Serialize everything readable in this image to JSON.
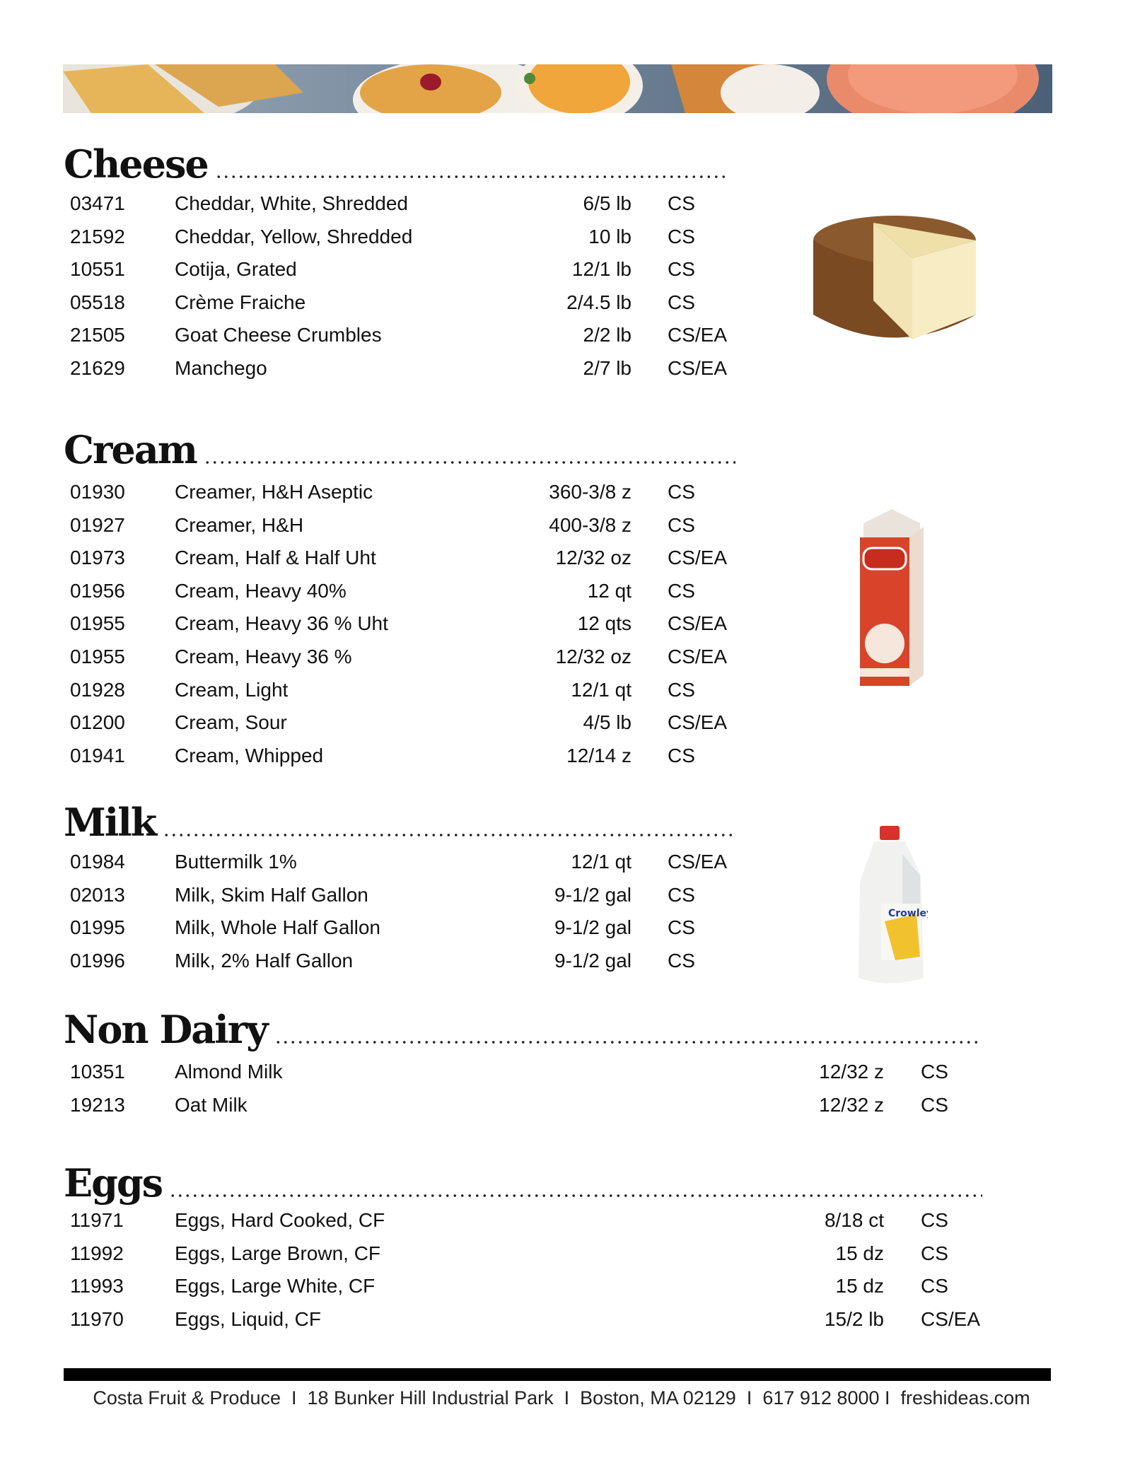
{
  "sections": [
    {
      "title": "Cheese",
      "rows": [
        [
          "03471",
          "Cheddar, White, Shredded",
          "6/5 lb",
          "CS"
        ],
        [
          "21592",
          "Cheddar, Yellow, Shredded",
          "10 lb",
          "CS"
        ],
        [
          "10551",
          "Cotija, Grated",
          "12/1 lb",
          "CS"
        ],
        [
          "05518",
          "Crème Fraiche",
          "2/4.5 lb",
          "CS"
        ],
        [
          "21505",
          "Goat Cheese Crumbles",
          "2/2 lb",
          "CS/EA"
        ],
        [
          "21629",
          "Manchego",
          "2/7 lb",
          "CS/EA"
        ]
      ]
    },
    {
      "title": "Cream",
      "rows": [
        [
          "01930",
          "Creamer, H&H Aseptic",
          "360-3/8 z",
          "CS"
        ],
        [
          "01927",
          "Creamer, H&H",
          "400-3/8 z",
          "CS"
        ],
        [
          "01973",
          "Cream, Half & Half Uht",
          "12/32 oz",
          "CS/EA"
        ],
        [
          "01956",
          "Cream, Heavy 40%",
          "12 qt",
          "CS"
        ],
        [
          "01955",
          "Cream, Heavy 36 % Uht",
          "12 qts",
          "CS/EA"
        ],
        [
          "01955",
          "Cream, Heavy 36 %",
          "12/32 oz",
          "CS/EA"
        ],
        [
          "01928",
          "Cream, Light",
          "12/1 qt",
          "CS"
        ],
        [
          "01200",
          "Cream, Sour",
          "4/5 lb",
          "CS/EA"
        ],
        [
          "01941",
          "Cream, Whipped",
          "12/14 z",
          "CS"
        ]
      ]
    },
    {
      "title": "Milk",
      "rows": [
        [
          "01984",
          "Buttermilk 1%",
          "12/1 qt",
          "CS/EA"
        ],
        [
          "02013",
          "Milk, Skim Half Gallon",
          "9-1/2 gal",
          "CS"
        ],
        [
          "01995",
          "Milk, Whole Half Gallon",
          "9-1/2 gal",
          "CS"
        ],
        [
          "01996",
          "Milk, 2% Half Gallon",
          "9-1/2 gal",
          "CS"
        ]
      ]
    },
    {
      "title": "Non Dairy",
      "rows": [
        [
          "10351",
          "Almond Milk",
          "12/32 z",
          "CS"
        ],
        [
          "19213",
          "Oat Milk",
          "12/32 z",
          "CS"
        ]
      ]
    },
    {
      "title": "Eggs",
      "rows": [
        [
          "11971",
          "Eggs, Hard Cooked, CF",
          "8/18 ct",
          "CS"
        ],
        [
          "11992",
          "Eggs, Large Brown, CF",
          "15 dz",
          "CS"
        ],
        [
          "11993",
          "Eggs, Large White, CF",
          "15 dz",
          "CS"
        ],
        [
          "11970",
          "Eggs, Liquid, CF",
          "15/2 lb",
          "CS/EA"
        ]
      ]
    }
  ],
  "footer": "Costa Fruit & Produce  I  18 Bunker Hill Industrial Park  I  Boston, MA 02129  I  617 912 8000 I  freshideas.com"
}
